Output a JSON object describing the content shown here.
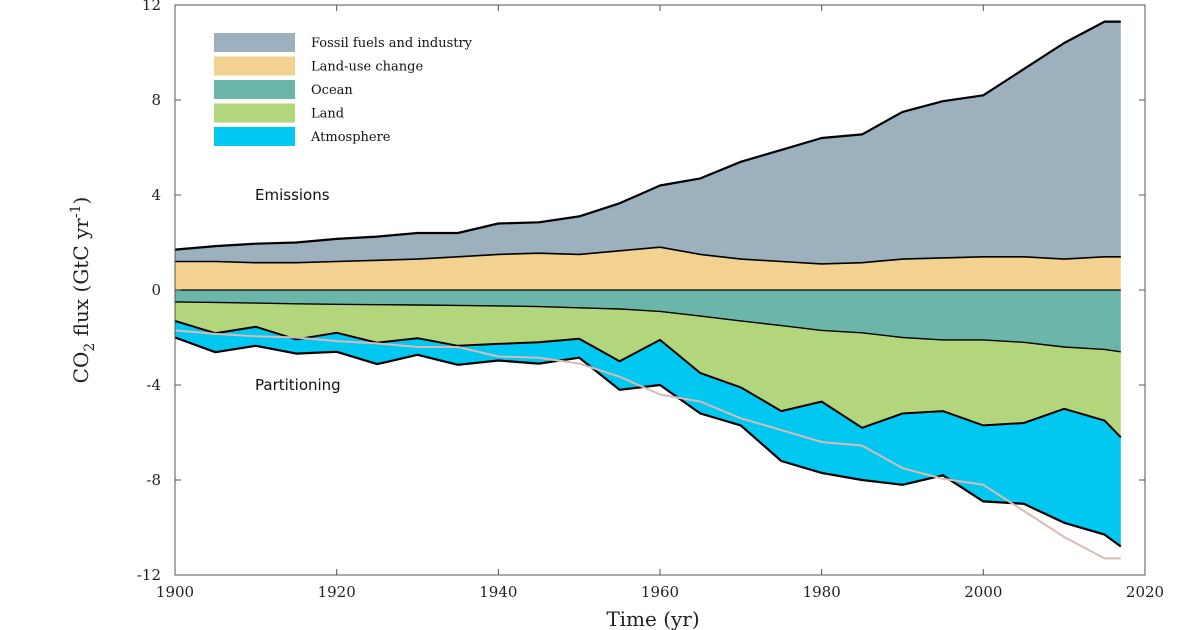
{
  "chart_data": {
    "type": "area",
    "xlabel": "Time (yr)",
    "ylabel_parts": [
      "CO",
      "2",
      " flux (GtC yr",
      "-1",
      ")"
    ],
    "xlim": [
      1900,
      2020
    ],
    "ylim": [
      -12,
      12
    ],
    "xticks": [
      "1900",
      "1920",
      "1940",
      "1960",
      "1980",
      "2000",
      "2020"
    ],
    "yticks": [
      "12",
      "8",
      "4",
      "0",
      "-4",
      "-8",
      "-12"
    ],
    "annotations": {
      "emissions": "Emissions",
      "partitioning": "Partitioning"
    },
    "legend": [
      {
        "label": "Fossil fuels and industry",
        "color": "#9db0bd"
      },
      {
        "label": "Land-use change",
        "color": "#f3d190"
      },
      {
        "label": "Ocean",
        "color": "#6cb6a9"
      },
      {
        "label": "Land",
        "color": "#b3d67d"
      },
      {
        "label": "Atmosphere",
        "color": "#00c8f0"
      }
    ],
    "emission_line_color": "#dcbab4",
    "x": [
      1900,
      1905,
      1910,
      1915,
      1920,
      1925,
      1930,
      1935,
      1940,
      1945,
      1950,
      1955,
      1960,
      1965,
      1970,
      1975,
      1980,
      1985,
      1990,
      1995,
      2000,
      2005,
      2010,
      2015,
      2017
    ],
    "series": [
      {
        "name": "Fossil fuels and industry",
        "values": [
          0.5,
          0.65,
          0.8,
          0.85,
          0.95,
          1.0,
          1.1,
          1.0,
          1.3,
          1.3,
          1.6,
          2.0,
          2.6,
          3.2,
          4.1,
          4.7,
          5.3,
          5.4,
          6.2,
          6.6,
          6.8,
          7.9,
          9.1,
          9.9,
          9.9
        ]
      },
      {
        "name": "Land-use change",
        "values": [
          1.2,
          1.2,
          1.15,
          1.15,
          1.2,
          1.25,
          1.3,
          1.4,
          1.5,
          1.55,
          1.5,
          1.65,
          1.8,
          1.5,
          1.3,
          1.2,
          1.1,
          1.15,
          1.3,
          1.35,
          1.4,
          1.4,
          1.3,
          1.4,
          1.4
        ]
      },
      {
        "name": "Ocean",
        "values": [
          -0.5,
          -0.52,
          -0.55,
          -0.58,
          -0.6,
          -0.62,
          -0.63,
          -0.65,
          -0.67,
          -0.7,
          -0.75,
          -0.8,
          -0.9,
          -1.1,
          -1.3,
          -1.5,
          -1.7,
          -1.8,
          -2.0,
          -2.1,
          -2.1,
          -2.2,
          -2.4,
          -2.5,
          -2.6
        ]
      },
      {
        "name": "Land",
        "values": [
          -0.8,
          -1.3,
          -1.0,
          -1.5,
          -1.2,
          -1.6,
          -1.4,
          -1.7,
          -1.6,
          -1.5,
          -1.3,
          -2.2,
          -1.2,
          -2.4,
          -2.8,
          -3.6,
          -3.0,
          -4.0,
          -3.2,
          -3.0,
          -3.6,
          -3.4,
          -2.6,
          -3.0,
          -3.6
        ]
      },
      {
        "name": "Atmosphere",
        "values": [
          -0.7,
          -0.8,
          -0.8,
          -0.6,
          -0.8,
          -0.9,
          -0.7,
          -0.8,
          -0.7,
          -0.9,
          -0.8,
          -1.2,
          -1.9,
          -1.7,
          -1.6,
          -2.1,
          -3.0,
          -2.2,
          -3.0,
          -2.7,
          -3.2,
          -3.4,
          -4.8,
          -4.8,
          -4.6
        ]
      },
      {
        "name": "Total emissions",
        "values": [
          1.7,
          1.85,
          1.95,
          2.0,
          2.15,
          2.25,
          2.4,
          2.4,
          2.8,
          2.85,
          3.1,
          3.65,
          4.4,
          4.7,
          5.4,
          5.9,
          6.4,
          6.55,
          7.5,
          7.95,
          8.2,
          9.3,
          10.4,
          11.3,
          11.3
        ]
      }
    ]
  }
}
